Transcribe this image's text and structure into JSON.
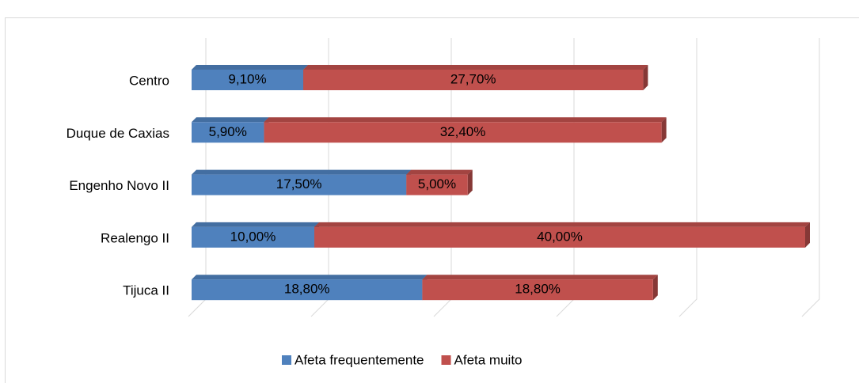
{
  "chart_data": {
    "type": "stacked_bar_horizontal",
    "categories": [
      "Centro",
      "Duque de Caxias",
      "Engenho Novo II",
      "Realengo II",
      "Tijuca II"
    ],
    "series": [
      {
        "name": "Afeta frequentemente",
        "color": "#4f81bd",
        "values": [
          9.1,
          5.9,
          17.5,
          10.0,
          18.8
        ],
        "value_labels": [
          "9,10%",
          "5,90%",
          "17,50%",
          "10,00%",
          "18,80%"
        ]
      },
      {
        "name": "Afeta muito",
        "color": "#c0504d",
        "values": [
          27.7,
          32.4,
          5.0,
          40.0,
          18.8
        ],
        "value_labels": [
          "27,70%",
          "32,40%",
          "5,00%",
          "40,00%",
          "18,80%"
        ]
      }
    ],
    "xlim": [
      0,
      50
    ],
    "xticks": [
      0,
      10,
      20,
      30,
      40,
      50
    ],
    "grid": true,
    "legend": "bottom"
  }
}
